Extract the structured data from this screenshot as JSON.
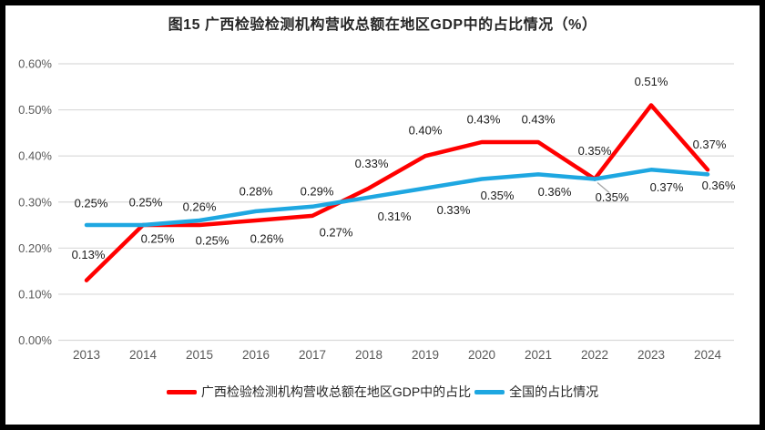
{
  "title": "图15 广西检验检测机构营收总额在地区GDP中的占比情况（%）",
  "legend": [
    {
      "label": "广西检验检测机构营收总额在地区GDP中的占比",
      "color": "#FF0000"
    },
    {
      "label": "全国的占比情况",
      "color": "#1EA7E1"
    }
  ],
  "colors": {
    "grid": "#D9D9D9",
    "axis_text": "#595959",
    "data_label_text": "#1A1A1A",
    "leader_line": "#A6A6A6",
    "frame_border": "#000000",
    "red_series": "#FF0000",
    "blue_series": "#1EA7E1"
  },
  "chart_data": {
    "type": "line",
    "title": "图15 广西检验检测机构营收总额在地区GDP中的占比情况（%）",
    "categories": [
      "2013",
      "2014",
      "2015",
      "2016",
      "2017",
      "2018",
      "2019",
      "2020",
      "2021",
      "2022",
      "2023",
      "2024"
    ],
    "series": [
      {
        "name": "广西检验检测机构营收总额在地区GDP中的占比",
        "color": "#FF0000",
        "values": [
          0.13,
          0.25,
          0.25,
          0.26,
          0.27,
          0.33,
          0.4,
          0.43,
          0.43,
          0.35,
          0.51,
          0.37
        ],
        "labels": [
          "0.13%",
          "0.25%",
          "0.25%",
          "0.26%",
          "0.27%",
          "0.33%",
          "0.40%",
          "0.43%",
          "0.43%",
          "0.35%",
          "0.51%",
          "0.37%"
        ],
        "label_offsets": [
          [
            2,
            -28
          ],
          [
            16,
            15
          ],
          [
            14,
            17
          ],
          [
            12,
            20
          ],
          [
            26,
            18
          ],
          [
            3,
            -27
          ],
          [
            0,
            -28
          ],
          [
            2,
            -25
          ],
          [
            0,
            -25
          ],
          [
            0,
            -31
          ],
          [
            0,
            -26
          ],
          [
            2,
            -28
          ]
        ]
      },
      {
        "name": "全国的占比情况",
        "color": "#1EA7E1",
        "values": [
          0.25,
          0.25,
          0.26,
          0.28,
          0.29,
          0.31,
          0.33,
          0.35,
          0.36,
          0.35,
          0.37,
          0.36
        ],
        "labels": [
          "0.25%",
          "0.25%",
          "0.26%",
          "0.28%",
          "0.29%",
          "0.31%",
          "0.33%",
          "0.35%",
          "0.36%",
          "0.35%",
          "0.37%",
          "0.36%"
        ],
        "label_offsets": [
          [
            5,
            -24
          ],
          [
            3,
            -25
          ],
          [
            0,
            -15
          ],
          [
            0,
            -22
          ],
          [
            5,
            -17
          ],
          [
            28,
            21
          ],
          [
            31,
            24
          ],
          [
            17,
            18
          ],
          [
            18,
            19
          ],
          [
            19,
            20
          ],
          [
            17,
            19
          ],
          [
            12,
            12
          ]
        ],
        "leader_line_index": 9
      }
    ],
    "xlabel": "",
    "ylabel": "",
    "ylim": [
      0,
      0.6
    ],
    "ytick_step": 0.1,
    "yticks": [
      "0.00%",
      "0.10%",
      "0.20%",
      "0.30%",
      "0.40%",
      "0.50%",
      "0.60%"
    ],
    "grid": true,
    "legend_position": "bottom"
  }
}
